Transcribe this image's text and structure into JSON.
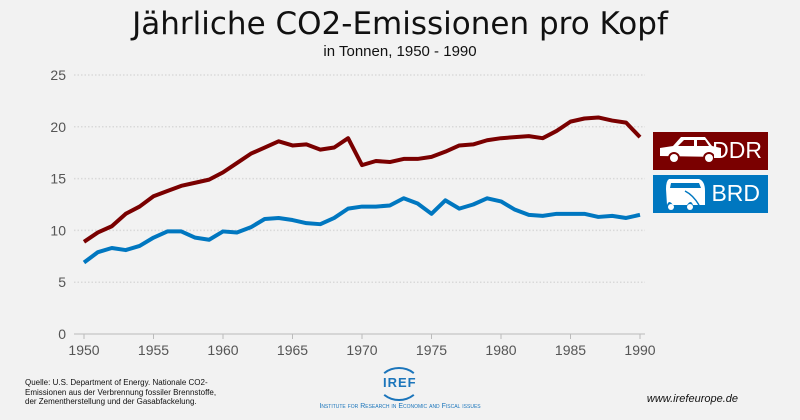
{
  "chart_data": {
    "type": "line",
    "title": "Jährliche CO2-Emissionen pro Kopf",
    "subtitle": "in Tonnen, 1950 - 1990",
    "xlim": [
      1950,
      1990
    ],
    "ylim": [
      0,
      25
    ],
    "xticks": [
      1950,
      1955,
      1960,
      1965,
      1970,
      1975,
      1980,
      1985,
      1990
    ],
    "yticks": [
      0,
      5,
      10,
      15,
      20,
      25
    ],
    "grid": "horizontal dotted",
    "legend_placement": "right",
    "x": [
      1950,
      1951,
      1952,
      1953,
      1954,
      1955,
      1956,
      1957,
      1958,
      1959,
      1960,
      1961,
      1962,
      1963,
      1964,
      1965,
      1966,
      1967,
      1968,
      1969,
      1970,
      1971,
      1972,
      1973,
      1974,
      1975,
      1976,
      1977,
      1978,
      1979,
      1980,
      1981,
      1982,
      1983,
      1984,
      1985,
      1986,
      1987,
      1988,
      1989,
      1990
    ],
    "series": [
      {
        "name": "DDR",
        "color": "#7a0000",
        "icon": "car-icon",
        "values": [
          8.9,
          9.8,
          10.4,
          11.6,
          12.3,
          13.3,
          13.8,
          14.3,
          14.6,
          14.9,
          15.6,
          16.5,
          17.4,
          18.0,
          18.6,
          18.2,
          18.3,
          17.8,
          18.0,
          18.9,
          16.3,
          16.7,
          16.6,
          16.9,
          16.9,
          17.1,
          17.6,
          18.2,
          18.3,
          18.7,
          18.9,
          19.0,
          19.1,
          18.9,
          19.6,
          20.5,
          20.8,
          20.9,
          20.6,
          20.4,
          19.0
        ]
      },
      {
        "name": "BRD",
        "color": "#0077c0",
        "icon": "van-icon",
        "values": [
          6.9,
          7.9,
          8.3,
          8.1,
          8.5,
          9.3,
          9.9,
          9.9,
          9.3,
          9.1,
          9.9,
          9.8,
          10.3,
          11.1,
          11.2,
          11.0,
          10.7,
          10.6,
          11.2,
          12.1,
          12.3,
          12.3,
          12.4,
          13.1,
          12.6,
          11.6,
          12.9,
          12.1,
          12.5,
          13.1,
          12.8,
          12.0,
          11.5,
          11.4,
          11.6,
          11.6,
          11.6,
          11.3,
          11.4,
          11.2,
          11.5
        ]
      }
    ]
  },
  "footer": {
    "source_lines": [
      "Quelle: U.S. Department of Energy. Nationale CO2-",
      "Emissionen aus der Verbrennung fossiler Brennstoffe,",
      "der Zementherstellung und der Gasabfackelung."
    ],
    "logo_text": "IREF",
    "institute": "Institute for Research in Economic and Fiscal issues",
    "website": "www.irefeurope.de"
  }
}
